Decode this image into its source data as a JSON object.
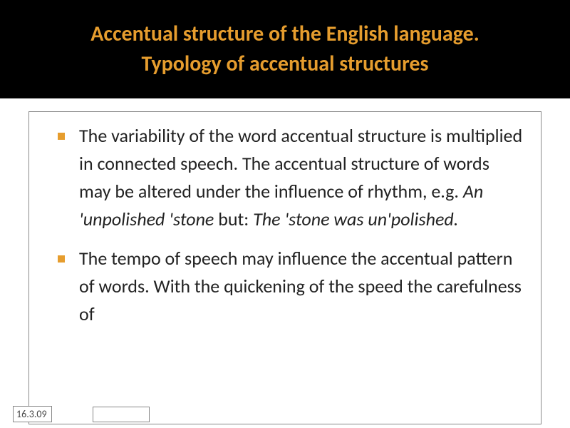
{
  "title": {
    "line1": "Accentual structure of the English language.",
    "line2": "Typology of accentual structures"
  },
  "bullets": [
    {
      "pre": "The variability of the word accentual structure is multiplied in connected speech. The accentual structure of words may be altered under the influence of rhythm, e.g. ",
      "italic1": "An 'unpolished 'stone ",
      "mid": "but: ",
      "italic2": "The 'stone was un'polished.",
      "post": ""
    },
    {
      "pre": "The tempo of speech may influence the accentual pattern of words. With the quickening of the speed the carefulness of",
      "italic1": "",
      "mid": "",
      "italic2": "",
      "post": ""
    }
  ],
  "footer": {
    "date": "16.3.09"
  },
  "colors": {
    "title_bg": "#000000",
    "title_fg": "#e69d2e",
    "bullet_marker": "#e69d2e",
    "body_text": "#222222",
    "border": "#888888",
    "page_bg": "#ffffff"
  }
}
